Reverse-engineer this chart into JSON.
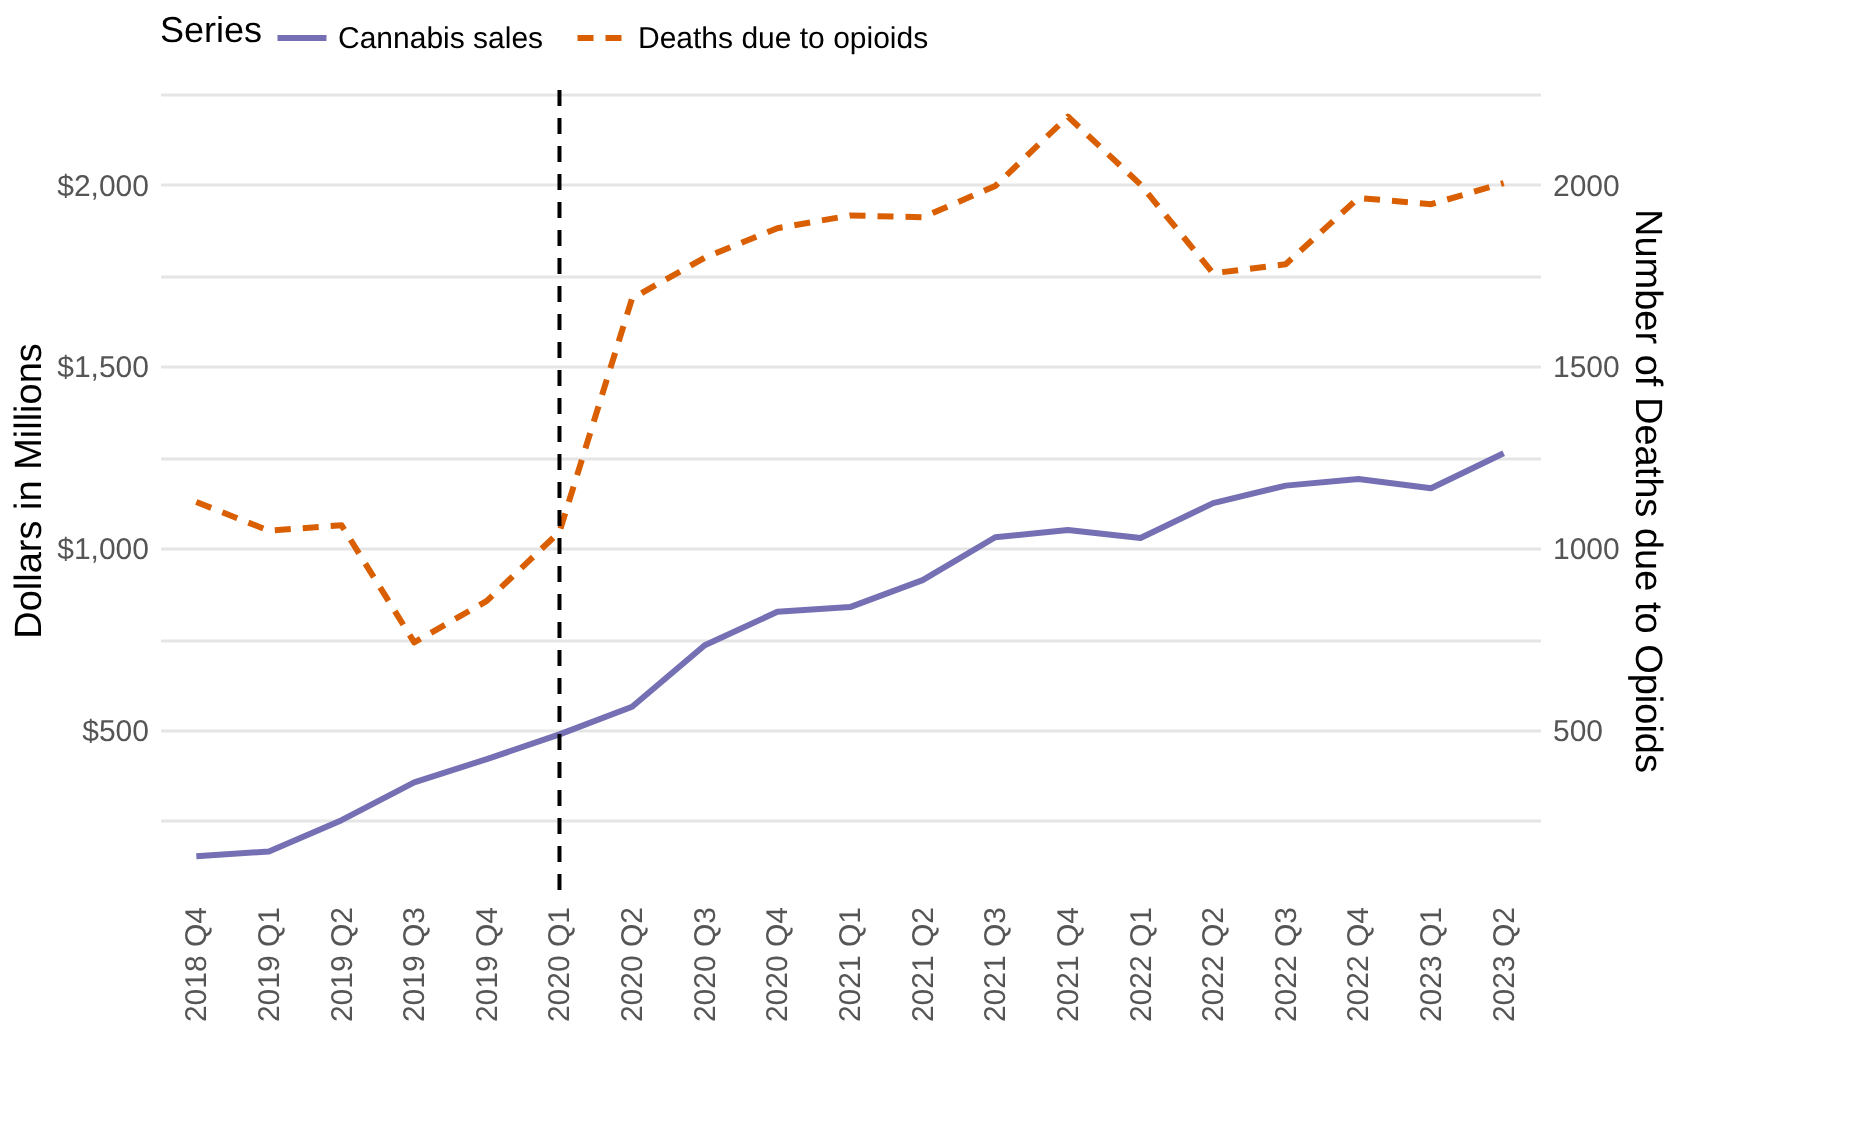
{
  "chart_data": {
    "type": "line",
    "categories": [
      "2018 Q4",
      "2019 Q1",
      "2019 Q2",
      "2019 Q3",
      "2019 Q4",
      "2020 Q1",
      "2020 Q2",
      "2020 Q3",
      "2020 Q4",
      "2021 Q1",
      "2021 Q2",
      "2021 Q3",
      "2021 Q4",
      "2022 Q1",
      "2022 Q2",
      "2022 Q3",
      "2022 Q4",
      "2023 Q1",
      "2023 Q2"
    ],
    "series": [
      {
        "name": "Cannabis sales",
        "color": "#7570b3",
        "line_style": "solid",
        "values": [
          153,
          166,
          252,
          356,
          420,
          488,
          564,
          733,
          825,
          838,
          912,
          1030,
          1050,
          1028,
          1124,
          1172,
          1190,
          1165,
          1261
        ]
      },
      {
        "name": "Deaths due to opioids",
        "color": "#d95f02",
        "line_style": "dashed",
        "axis": "y2",
        "values": [
          1127,
          1048,
          1063,
          741,
          855,
          1045,
          1687,
          1799,
          1880,
          1915,
          1910,
          1996,
          2187,
          2000,
          1756,
          1781,
          1963,
          1946,
          2004
        ]
      }
    ],
    "ylabel": "Dollars in Millions",
    "y2label": "Number of Deaths due to Opioids",
    "legend_title": "Series",
    "legend": "top",
    "ylim": [
      60,
      2260
    ],
    "yticks": [
      {
        "value": 250,
        "label": null
      },
      {
        "value": 500,
        "label": "$500"
      },
      {
        "value": 750,
        "label": null
      },
      {
        "value": 1000,
        "label": "$1,000"
      },
      {
        "value": 1250,
        "label": null
      },
      {
        "value": 1500,
        "label": "$1,500"
      },
      {
        "value": 1750,
        "label": null
      },
      {
        "value": 2000,
        "label": "$2,000"
      },
      {
        "value": 2250,
        "label": null
      }
    ],
    "y2lim": [
      60,
      2260
    ],
    "y2ticks": [
      500,
      1000,
      1500,
      2000
    ],
    "grid": "y",
    "marker": "none",
    "ref_lines": [
      {
        "axis": "x",
        "value": "2020 Q1",
        "color": "#000000",
        "line_style": "dashed"
      }
    ]
  }
}
